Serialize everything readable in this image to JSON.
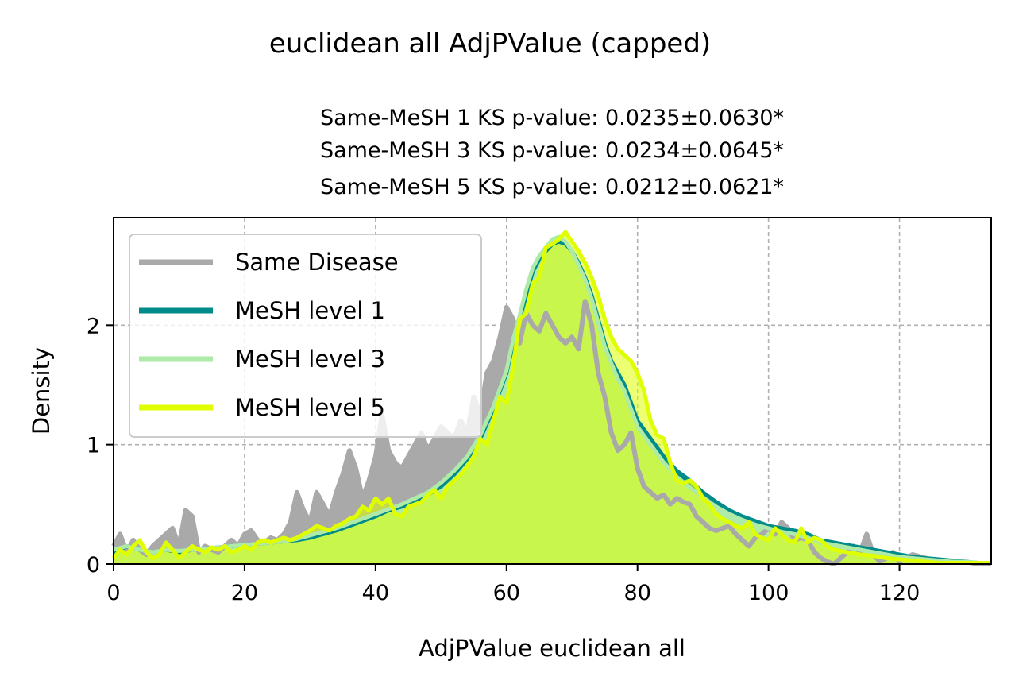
{
  "chart_data": {
    "type": "area",
    "title": "euclidean all AdjPValue (capped)",
    "subtitle_lines": [
      "Same-MeSH 1 KS p-value: 0.0235±0.0630*",
      "Same-MeSH 3 KS p-value: 0.0234±0.0645*",
      "Same-MeSH 5 KS p-value: 0.0212±0.0621*"
    ],
    "xlabel": "AdjPValue euclidean all",
    "ylabel": "Density",
    "xlim": [
      0,
      134
    ],
    "ylim": [
      0,
      2.9
    ],
    "xticks": [
      0,
      20,
      40,
      60,
      80,
      100,
      120
    ],
    "yticks": [
      0,
      1,
      2
    ],
    "grid": true,
    "legend_position": "upper-left",
    "series": [
      {
        "name": "Same Disease",
        "color": "#a9a9a9",
        "x": [
          0,
          1,
          2,
          3,
          4,
          5,
          6,
          7,
          8,
          9,
          10,
          11,
          12,
          13,
          14,
          15,
          16,
          17,
          18,
          19,
          20,
          21,
          22,
          23,
          24,
          25,
          26,
          27,
          28,
          29,
          30,
          31,
          32,
          33,
          34,
          35,
          36,
          37,
          38,
          39,
          40,
          41,
          42,
          43,
          44,
          45,
          46,
          47,
          48,
          49,
          50,
          51,
          52,
          53,
          54,
          55,
          56,
          57,
          58,
          59,
          60,
          61,
          62,
          63,
          64,
          65,
          66,
          67,
          68,
          69,
          70,
          71,
          72,
          73,
          74,
          75,
          76,
          77,
          78,
          79,
          80,
          81,
          82,
          83,
          84,
          85,
          86,
          87,
          88,
          89,
          90,
          91,
          92,
          93,
          94,
          95,
          96,
          97,
          98,
          99,
          100,
          101,
          102,
          103,
          104,
          105,
          106,
          107,
          108,
          109,
          110,
          111,
          112,
          113,
          114,
          115,
          116,
          117,
          118,
          119,
          120,
          122,
          124,
          126,
          128,
          130,
          132,
          134
        ],
        "values": [
          0.15,
          0.25,
          0.1,
          0.2,
          0.12,
          0.08,
          0.15,
          0.2,
          0.25,
          0.3,
          0.15,
          0.45,
          0.4,
          0.1,
          0.15,
          0.12,
          0.1,
          0.15,
          0.2,
          0.15,
          0.25,
          0.28,
          0.2,
          0.18,
          0.22,
          0.2,
          0.25,
          0.35,
          0.6,
          0.45,
          0.35,
          0.6,
          0.5,
          0.4,
          0.6,
          0.75,
          0.95,
          0.8,
          0.55,
          0.7,
          0.9,
          1.25,
          0.95,
          0.85,
          0.8,
          0.9,
          1.0,
          1.1,
          0.95,
          1.05,
          1.15,
          1.1,
          1.05,
          1.2,
          1.1,
          1.4,
          1.25,
          1.6,
          1.7,
          1.9,
          2.15,
          2.05,
          1.85,
          2.1,
          2.0,
          1.95,
          2.1,
          2.0,
          1.9,
          1.85,
          1.9,
          1.8,
          2.2,
          2.0,
          1.6,
          1.4,
          1.1,
          0.95,
          1.0,
          1.1,
          0.8,
          0.65,
          0.6,
          0.55,
          0.58,
          0.5,
          0.55,
          0.52,
          0.5,
          0.4,
          0.35,
          0.3,
          0.28,
          0.3,
          0.32,
          0.25,
          0.2,
          0.15,
          0.22,
          0.25,
          0.3,
          0.25,
          0.35,
          0.3,
          0.2,
          0.22,
          0.2,
          0.1,
          0.05,
          0.02,
          0.0,
          0.05,
          0.1,
          0.15,
          0.1,
          0.25,
          0.08,
          0.02,
          0.05,
          0.1,
          0.02,
          0.08,
          0.05,
          0.02,
          0.02,
          0.02,
          0.0,
          0.0
        ]
      },
      {
        "name": "MeSH level 1",
        "color": "#008b8b",
        "x": [
          0,
          2,
          4,
          6,
          8,
          10,
          12,
          14,
          16,
          18,
          20,
          22,
          24,
          26,
          28,
          30,
          32,
          34,
          36,
          38,
          40,
          42,
          44,
          46,
          48,
          50,
          52,
          54,
          56,
          58,
          60,
          61,
          62,
          63,
          64,
          65,
          66,
          67,
          68,
          69,
          70,
          71,
          72,
          73,
          74,
          75,
          76,
          77,
          78,
          79,
          80,
          82,
          84,
          86,
          88,
          90,
          92,
          94,
          96,
          98,
          100,
          102,
          104,
          106,
          108,
          110,
          112,
          114,
          116,
          118,
          120,
          122,
          124,
          126,
          128,
          130,
          132,
          134
        ],
        "values": [
          0.1,
          0.15,
          0.12,
          0.1,
          0.12,
          0.1,
          0.12,
          0.13,
          0.14,
          0.15,
          0.16,
          0.17,
          0.18,
          0.19,
          0.2,
          0.22,
          0.25,
          0.28,
          0.32,
          0.36,
          0.4,
          0.45,
          0.48,
          0.52,
          0.58,
          0.65,
          0.75,
          0.88,
          1.05,
          1.3,
          1.6,
          1.85,
          2.05,
          2.25,
          2.45,
          2.55,
          2.62,
          2.68,
          2.7,
          2.68,
          2.62,
          2.52,
          2.4,
          2.25,
          2.05,
          1.85,
          1.7,
          1.6,
          1.5,
          1.35,
          1.2,
          1.05,
          0.9,
          0.78,
          0.7,
          0.6,
          0.52,
          0.45,
          0.4,
          0.36,
          0.32,
          0.3,
          0.28,
          0.25,
          0.2,
          0.18,
          0.16,
          0.14,
          0.12,
          0.1,
          0.08,
          0.06,
          0.05,
          0.04,
          0.03,
          0.02,
          0.01,
          0.01
        ]
      },
      {
        "name": "MeSH level 3",
        "color": "#aeeaa8",
        "x": [
          0,
          2,
          4,
          6,
          8,
          10,
          12,
          14,
          16,
          18,
          20,
          22,
          24,
          26,
          28,
          30,
          32,
          34,
          36,
          38,
          40,
          42,
          44,
          46,
          48,
          50,
          52,
          54,
          56,
          58,
          60,
          61,
          62,
          63,
          64,
          65,
          66,
          67,
          68,
          69,
          70,
          71,
          72,
          73,
          74,
          75,
          76,
          77,
          78,
          79,
          80,
          82,
          84,
          86,
          88,
          90,
          92,
          94,
          96,
          98,
          100,
          102,
          104,
          106,
          108,
          110,
          112,
          114,
          116,
          118,
          120,
          122,
          124,
          126,
          128,
          130,
          132,
          134
        ],
        "values": [
          0.12,
          0.15,
          0.12,
          0.1,
          0.12,
          0.11,
          0.12,
          0.13,
          0.14,
          0.15,
          0.16,
          0.17,
          0.18,
          0.19,
          0.21,
          0.24,
          0.27,
          0.3,
          0.34,
          0.38,
          0.42,
          0.46,
          0.5,
          0.55,
          0.6,
          0.68,
          0.78,
          0.9,
          1.08,
          1.32,
          1.62,
          1.88,
          2.08,
          2.3,
          2.48,
          2.58,
          2.65,
          2.72,
          2.74,
          2.7,
          2.62,
          2.5,
          2.38,
          2.22,
          2.02,
          1.82,
          1.68,
          1.55,
          1.45,
          1.3,
          1.15,
          1.0,
          0.85,
          0.73,
          0.64,
          0.56,
          0.48,
          0.42,
          0.37,
          0.33,
          0.3,
          0.27,
          0.25,
          0.22,
          0.18,
          0.16,
          0.14,
          0.12,
          0.1,
          0.08,
          0.06,
          0.05,
          0.04,
          0.03,
          0.02,
          0.02,
          0.01,
          0.01
        ]
      },
      {
        "name": "MeSH level 5",
        "color": "#dfff00",
        "x": [
          0,
          1,
          2,
          3,
          4,
          5,
          6,
          7,
          8,
          9,
          10,
          11,
          12,
          13,
          14,
          15,
          16,
          17,
          18,
          19,
          20,
          21,
          22,
          23,
          24,
          25,
          26,
          27,
          28,
          29,
          30,
          31,
          32,
          33,
          34,
          35,
          36,
          37,
          38,
          39,
          40,
          41,
          42,
          43,
          44,
          45,
          46,
          47,
          48,
          49,
          50,
          51,
          52,
          53,
          54,
          55,
          56,
          57,
          58,
          59,
          60,
          61,
          62,
          63,
          64,
          65,
          66,
          67,
          68,
          69,
          70,
          71,
          72,
          73,
          74,
          75,
          76,
          77,
          78,
          79,
          80,
          81,
          82,
          83,
          84,
          85,
          86,
          87,
          88,
          89,
          90,
          91,
          92,
          93,
          94,
          95,
          96,
          97,
          98,
          99,
          100,
          101,
          102,
          103,
          104,
          105,
          106,
          107,
          108,
          109,
          110,
          112,
          114,
          116,
          118,
          120,
          122,
          124,
          126,
          128,
          130,
          132,
          134
        ],
        "values": [
          0.05,
          0.12,
          0.08,
          0.15,
          0.2,
          0.1,
          0.05,
          0.08,
          0.18,
          0.12,
          0.05,
          0.1,
          0.15,
          0.12,
          0.1,
          0.14,
          0.12,
          0.15,
          0.1,
          0.12,
          0.15,
          0.12,
          0.18,
          0.2,
          0.18,
          0.2,
          0.22,
          0.2,
          0.22,
          0.25,
          0.28,
          0.32,
          0.3,
          0.28,
          0.32,
          0.34,
          0.38,
          0.4,
          0.48,
          0.45,
          0.55,
          0.5,
          0.55,
          0.42,
          0.4,
          0.48,
          0.5,
          0.52,
          0.58,
          0.62,
          0.55,
          0.65,
          0.7,
          0.75,
          0.82,
          0.9,
          1.05,
          1.0,
          1.2,
          1.4,
          1.35,
          1.65,
          2.05,
          2.1,
          2.35,
          2.4,
          2.65,
          2.68,
          2.72,
          2.78,
          2.7,
          2.62,
          2.52,
          2.4,
          2.25,
          2.05,
          1.9,
          1.8,
          1.75,
          1.7,
          1.6,
          1.45,
          1.2,
          1.08,
          1.05,
          0.85,
          0.7,
          0.68,
          0.7,
          0.65,
          0.55,
          0.5,
          0.42,
          0.38,
          0.35,
          0.32,
          0.3,
          0.35,
          0.25,
          0.22,
          0.2,
          0.3,
          0.25,
          0.2,
          0.18,
          0.3,
          0.18,
          0.22,
          0.2,
          0.15,
          0.12,
          0.1,
          0.08,
          0.07,
          0.05,
          0.04,
          0.03,
          0.02,
          0.01,
          0.01,
          0.01,
          0.01,
          0.01
        ]
      }
    ]
  }
}
